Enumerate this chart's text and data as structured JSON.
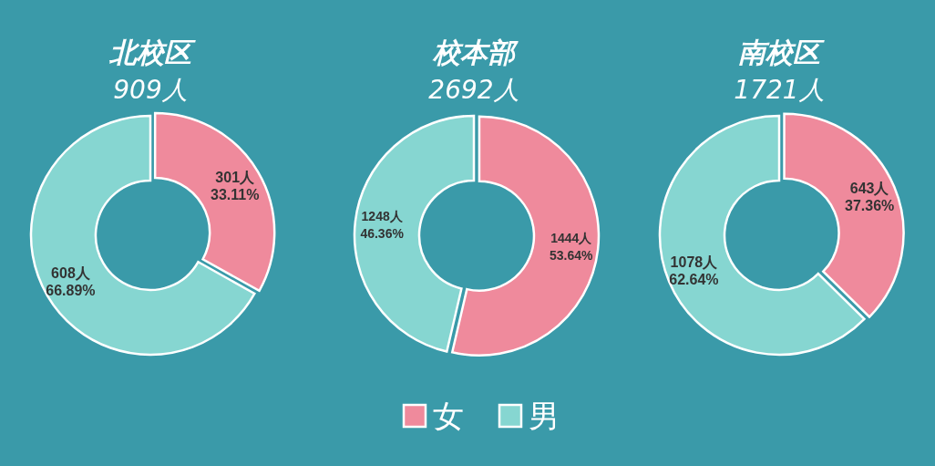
{
  "chart_data": [
    {
      "type": "donut",
      "title": "北校区",
      "subtitle": "909人",
      "categories": [
        null,
        null
      ],
      "values": [
        301,
        608
      ],
      "colors": [
        "#ef8a9c",
        "#86d6d1"
      ],
      "value_labels": [
        "301人\n33.11%",
        "608人\n66.89%"
      ],
      "legend": false
    },
    {
      "type": "donut",
      "title": "校本部",
      "subtitle": "2692人",
      "categories": [
        "女",
        "男"
      ],
      "values": [
        1444,
        1248
      ],
      "colors": [
        "#ef8a9c",
        "#86d6d1"
      ],
      "value_labels": [
        "1444人\n53.64%",
        "1248人\n46.36%"
      ],
      "legend": "bottom"
    },
    {
      "type": "donut",
      "title": "南校区",
      "subtitle": "1721人",
      "categories": [
        null,
        null
      ],
      "values": [
        643,
        1078
      ],
      "colors": [
        "#ef8a9c",
        "#86d6d1"
      ],
      "value_labels": [
        "643人\n37.36%",
        "1078人\n62.64%"
      ],
      "legend": false
    }
  ]
}
